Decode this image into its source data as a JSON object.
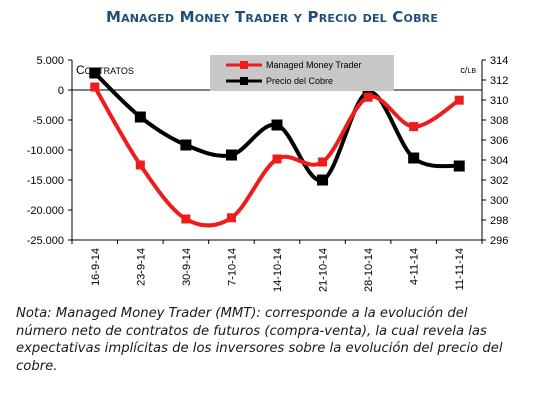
{
  "title": "Managed Money Trader y Precio del Cobre",
  "note": "Nota: Managed Money Trader (MMT): corresponde a la evolución del número neto de contratos de futuros (compra-venta), la cual revela las expectativas implícitas de los inversores sobre la evolución del precio del cobre.",
  "colors": {
    "mmt": "#ee1c1c",
    "cobre": "#000000",
    "legend_bg": "#c8c8c8"
  },
  "chart_data": {
    "type": "line",
    "categories": [
      "16-9-14",
      "23-9-14",
      "30-9-14",
      "7-10-14",
      "14-10-14",
      "21-10-14",
      "28-10-14",
      "4-11-14",
      "11-11-14"
    ],
    "left_axis_label": "Contratos",
    "right_axis_label": "c/lb",
    "ylim_left": [
      -25000,
      5000
    ],
    "yticks_left": [
      5000,
      0,
      -5000,
      -10000,
      -15000,
      -20000,
      -25000
    ],
    "ytick_labels_left": [
      "5.000",
      "0",
      "-5.000",
      "-10.000",
      "-15.000",
      "-20.000",
      "-25.000"
    ],
    "ylim_right": [
      296,
      314
    ],
    "yticks_right": [
      314,
      312,
      310,
      308,
      306,
      304,
      302,
      300,
      298,
      296
    ],
    "ytick_labels_right": [
      "314",
      "312",
      "310",
      "308",
      "306",
      "304",
      "302",
      "300",
      "298",
      "296"
    ],
    "legend_placement": "top-center",
    "grid": false,
    "series": [
      {
        "name": "Managed Money Trader",
        "axis": "left",
        "values": [
          500,
          -12500,
          -21500,
          -21300,
          -11500,
          -12000,
          -1200,
          -6100,
          -1700
        ]
      },
      {
        "name": "Precio del Cobre",
        "axis": "right",
        "values": [
          312.7,
          308.3,
          305.5,
          304.5,
          307.5,
          302.0,
          310.8,
          304.2,
          303.4
        ]
      }
    ]
  }
}
